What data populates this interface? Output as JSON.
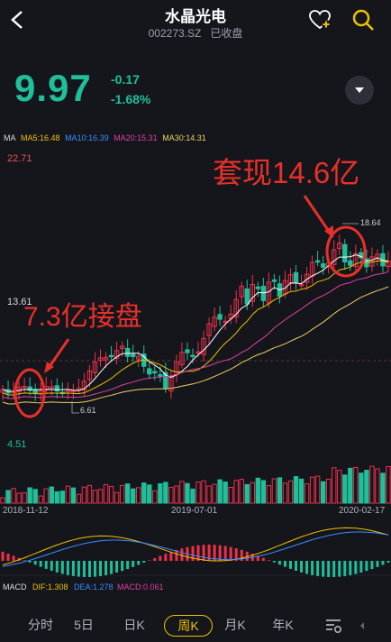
{
  "header": {
    "title": "水晶光电",
    "code": "002273.SZ",
    "status": "已收盘"
  },
  "quote": {
    "price": "9.97",
    "change": "-0.17",
    "change_pct": "-1.68%"
  },
  "ma_legend": {
    "label": "MA",
    "ma5": "MA5:16.48",
    "ma10": "MA10:16.39",
    "ma20": "MA20:15.31",
    "ma30": "MA30:14.31"
  },
  "chart_data": {
    "type": "candlestick",
    "y_max_label": "22.71",
    "y_mid_label": "13.61",
    "y_min_label": "4.51",
    "high_label": "18.64",
    "low_label": "6.61",
    "dates": [
      "2018-11-12",
      "2019-07-01",
      "2020-02-17"
    ],
    "annotations": [
      "套现14.6亿",
      "7.3亿接盘"
    ]
  },
  "macd": {
    "label": "MACD",
    "dif": "DIF:1.308",
    "dea": "DEA:1.278",
    "macd": "MACD:0.061"
  },
  "tabs": [
    {
      "label": "分时"
    },
    {
      "label": "5日"
    },
    {
      "label": "日K"
    },
    {
      "label": "周K",
      "active": true
    },
    {
      "label": "月K"
    },
    {
      "label": "年K"
    }
  ],
  "colors": {
    "up": "#f0304a",
    "down": "#1fbf9a",
    "ma5": "#ffffff",
    "ma10": "#f0c000",
    "ma20": "#e040a0",
    "ma30": "#3a8cff",
    "annotation": "#e8302a"
  }
}
